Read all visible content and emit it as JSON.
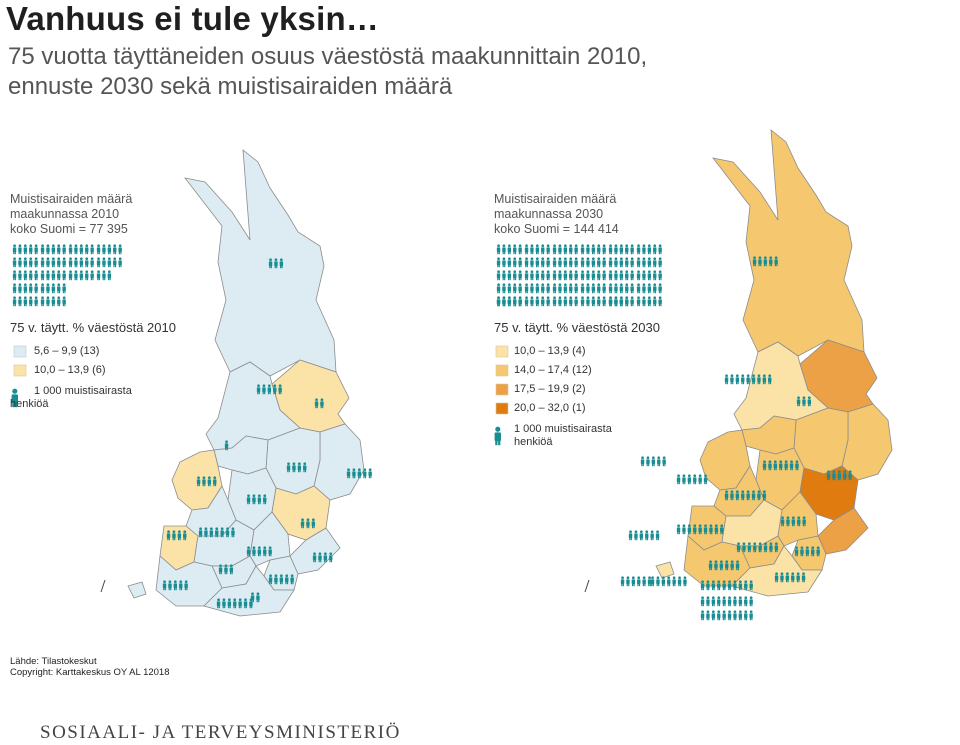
{
  "title": "Vanhuus ei tule yksin…",
  "subtitle_line1": "75 vuotta täyttäneiden osuus väestöstä maakunnittain 2010,",
  "subtitle_line2": "ennuste 2030 sekä muistisairaiden määrä",
  "map2010": {
    "info_line1": "Muistisairaiden määrä",
    "info_line2": "maakunnassa 2010",
    "info_line3": "koko Suomi = 77 395",
    "legend_title": "75 v. täytt. % väestöstä 2010",
    "classes": [
      {
        "label": "5,6  –  9,9 (13)",
        "color": "#dcecf2"
      },
      {
        "label": "10,0  – 13,9  (6)",
        "color": "#fbe3a8"
      }
    ],
    "icon_label_line1": "1 000 muistisairasta",
    "icon_label_line2": "henkiöä"
  },
  "map2030": {
    "info_line1": "Muistisairaiden määrä",
    "info_line2": "maakunnassa 2030",
    "info_line3": "koko Suomi = 144 414",
    "legend_title": "75 v. täytt. % väestöstä 2030",
    "classes": [
      {
        "label": "10,0 – 13,9  (4)",
        "color": "#fbe3a8"
      },
      {
        "label": "14,0 – 17,4 (12)",
        "color": "#f5c870"
      },
      {
        "label": "17,5 – 19,9  (2)",
        "color": "#eda146"
      },
      {
        "label": "20,0 – 32,0  (1)",
        "color": "#e07b0f"
      }
    ],
    "icon_label_line1": "1 000 muistisairasta",
    "icon_label_line2": "henkiöä"
  },
  "source_line1": "Lähde: Tilastokeskut",
  "source_line2": "Copyright: Karttakeskus OY AL 12018",
  "ministry": "SOSIAALI- JA TERVEYSMINISTERIÖ",
  "colors": {
    "icon": "#1a8d92",
    "border": "#ffffff",
    "outline": "#9a9a9a"
  }
}
